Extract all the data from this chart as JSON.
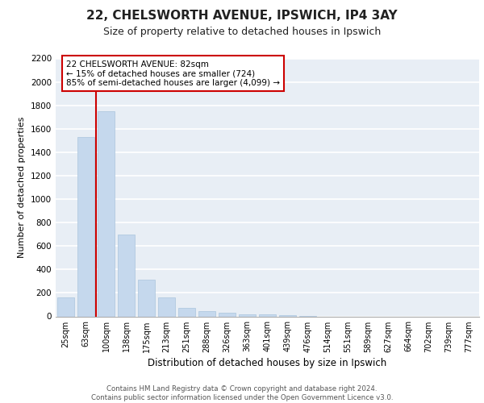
{
  "title_line1": "22, CHELSWORTH AVENUE, IPSWICH, IP4 3AY",
  "title_line2": "Size of property relative to detached houses in Ipswich",
  "xlabel": "Distribution of detached houses by size in Ipswich",
  "ylabel": "Number of detached properties",
  "categories": [
    "25sqm",
    "63sqm",
    "100sqm",
    "138sqm",
    "175sqm",
    "213sqm",
    "251sqm",
    "288sqm",
    "326sqm",
    "363sqm",
    "401sqm",
    "439sqm",
    "476sqm",
    "514sqm",
    "551sqm",
    "589sqm",
    "627sqm",
    "664sqm",
    "702sqm",
    "739sqm",
    "777sqm"
  ],
  "values": [
    160,
    1530,
    1750,
    700,
    310,
    160,
    75,
    45,
    30,
    20,
    15,
    8,
    2,
    0,
    0,
    0,
    0,
    0,
    0,
    0,
    0
  ],
  "bar_color": "#c5d8ed",
  "bar_edge_color": "#aac4dd",
  "background_color": "#e8eef5",
  "grid_color": "#ffffff",
  "subject_line_color": "#cc0000",
  "annotation_line1": "22 CHELSWORTH AVENUE: 82sqm",
  "annotation_line2": "← 15% of detached houses are smaller (724)",
  "annotation_line3": "85% of semi-detached houses are larger (4,099) →",
  "annotation_box_color": "#cc0000",
  "annotation_box_fill": "#ffffff",
  "ylim_max": 2200,
  "yticks": [
    0,
    200,
    400,
    600,
    800,
    1000,
    1200,
    1400,
    1600,
    1800,
    2000,
    2200
  ],
  "footer_line1": "Contains HM Land Registry data © Crown copyright and database right 2024.",
  "footer_line2": "Contains public sector information licensed under the Open Government Licence v3.0."
}
